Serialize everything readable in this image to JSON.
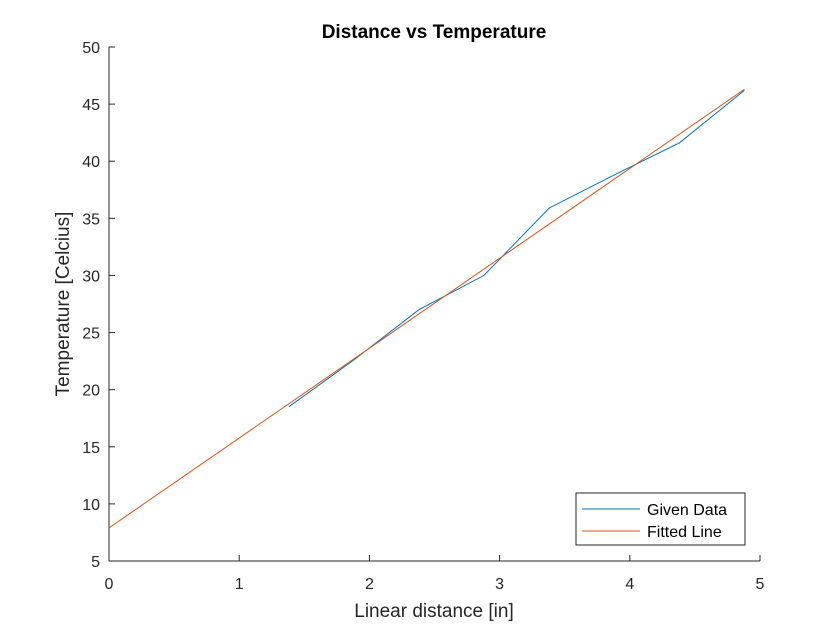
{
  "chart_data": {
    "type": "line",
    "title": "Distance vs Temperature",
    "xlabel": "Linear distance [in]",
    "ylabel": "Temperature [Celcius]",
    "xlim": [
      0,
      5
    ],
    "ylim": [
      5,
      50
    ],
    "xticks": [
      0,
      1,
      2,
      3,
      4,
      5
    ],
    "yticks": [
      5,
      10,
      15,
      20,
      25,
      30,
      35,
      40,
      45,
      50
    ],
    "grid": false,
    "legend_position": "bottom-right",
    "series": [
      {
        "name": "Given Data",
        "color": "#0072BD",
        "x": [
          1.38,
          1.88,
          2.38,
          2.88,
          3.38,
          3.88,
          4.38,
          4.88
        ],
        "y": [
          18.5,
          22.6,
          27.0,
          30.0,
          35.9,
          38.8,
          41.6,
          46.2
        ]
      },
      {
        "name": "Fitted Line",
        "color": "#D95319",
        "x": [
          0,
          4.88
        ],
        "y": [
          7.9,
          46.3
        ]
      }
    ]
  }
}
